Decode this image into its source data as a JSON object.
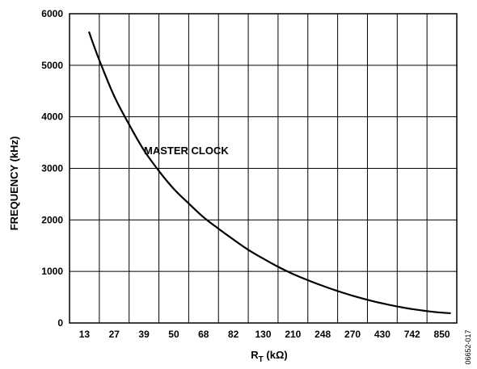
{
  "chart_data": {
    "type": "line",
    "title": "",
    "xlabel_main": "R",
    "xlabel_sub": "T",
    "xlabel_unit": " (kΩ)",
    "ylabel": "FREQUENCY (kHz)",
    "categories": [
      "13",
      "27",
      "39",
      "50",
      "68",
      "82",
      "130",
      "210",
      "248",
      "270",
      "430",
      "742",
      "850"
    ],
    "yticks": [
      0,
      1000,
      2000,
      3000,
      4000,
      5000,
      6000
    ],
    "ylim": [
      0,
      6000
    ],
    "grid": true,
    "annotation": "MASTER CLOCK",
    "figure_id": "06652-017",
    "series": [
      {
        "x": [
          0.15,
          0.5,
          1.0,
          1.5,
          2.0,
          2.5,
          3.0,
          3.5,
          4.0,
          4.5,
          5.0,
          5.5,
          6.0,
          6.5,
          7.0,
          7.5,
          8.0,
          8.5,
          9.0,
          9.5,
          10.0,
          10.5,
          11.0,
          11.5,
          12.0,
          12.3
        ],
        "values": [
          5650,
          5100,
          4400,
          3850,
          3350,
          2950,
          2600,
          2320,
          2050,
          1830,
          1620,
          1420,
          1250,
          1090,
          950,
          830,
          720,
          620,
          530,
          450,
          380,
          320,
          270,
          230,
          200,
          190
        ]
      }
    ]
  }
}
